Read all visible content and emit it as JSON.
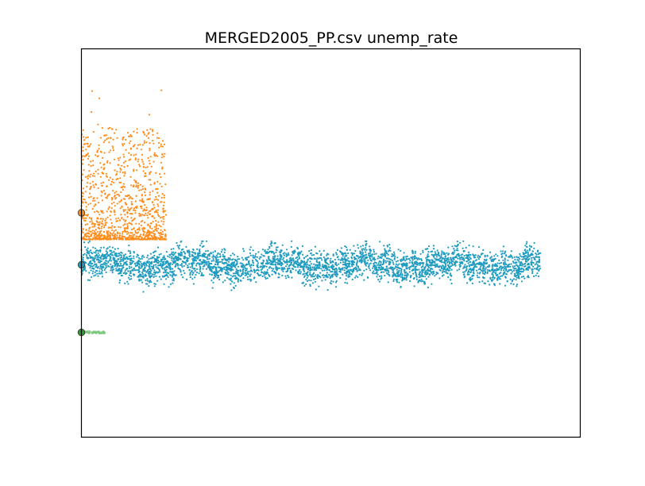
{
  "chart_data": {
    "type": "scatter",
    "title": "MERGED2005_PP.csv  unemp_rate",
    "xlabel": "",
    "ylabel": "",
    "xlim": [
      0,
      5000
    ],
    "ylim": [
      -0.19,
      0.9
    ],
    "grid": false,
    "axis_ticks": false,
    "series": [
      {
        "color": "#1f9bbf",
        "marker_color": "#1f9bbf",
        "x_range": [
          0,
          4600
        ],
        "y_center": 0.294,
        "y_spread": [
          0.21,
          0.36
        ],
        "count": 3600,
        "anchor": {
          "x": 0,
          "y": 0.294
        }
      },
      {
        "color": "#ff8c1a",
        "marker_color": "#ff8c1a",
        "x_range": [
          0,
          850
        ],
        "y_floor": 0.365,
        "y_max": 0.8,
        "count": 1100,
        "anchor": {
          "x": 0,
          "y": 0.44
        }
      },
      {
        "color": "#2ca02c",
        "marker_color": "#7fc97f",
        "x_range": [
          0,
          230
        ],
        "y_center": 0.104,
        "count": 30,
        "anchor": {
          "x": 0,
          "y": 0.104
        }
      }
    ]
  }
}
